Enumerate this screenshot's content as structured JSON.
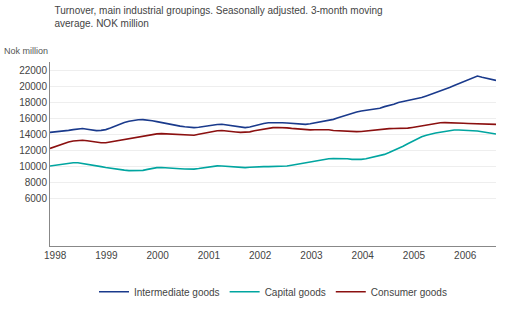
{
  "chart_data": {
    "type": "line",
    "title": "Turnover, main industrial groupings. Seasonally adjusted. 3-month moving\naverage. NOK million",
    "ylabel": "Nok million",
    "x": [
      1997.9,
      1997.990625,
      1998.08125,
      1998.171875,
      1998.2625,
      1998.353125,
      1998.44375,
      1998.534375,
      1998.625,
      1998.715625,
      1998.80625,
      1998.896875,
      1998.9875,
      1999.078125,
      1999.16875,
      1999.259375,
      1999.35,
      1999.440625,
      1999.53125,
      1999.621875,
      1999.7125,
      1999.803125,
      1999.89375,
      1999.984375,
      2000.075,
      2000.165625,
      2000.25625,
      2000.346875,
      2000.4375,
      2000.528125,
      2000.61875,
      2000.709375,
      2000.8,
      2000.890625,
      2000.98125,
      2001.071875,
      2001.1625,
      2001.253125,
      2001.34375,
      2001.434375,
      2001.525,
      2001.615625,
      2001.70625,
      2001.796875,
      2001.8875,
      2001.978125,
      2002.06875,
      2002.159375,
      2002.25,
      2002.340625,
      2002.43125,
      2002.521875,
      2002.6125,
      2002.703125,
      2002.79375,
      2002.884375,
      2002.975,
      2003.065625,
      2003.15625,
      2003.246875,
      2003.3375,
      2003.428125,
      2003.51875,
      2003.609375,
      2003.7,
      2003.790625,
      2003.88125,
      2003.971875,
      2004.0625,
      2004.153125,
      2004.24375,
      2004.334375,
      2004.425,
      2004.515625,
      2004.60625,
      2004.696875,
      2004.7875,
      2004.878125,
      2004.96875,
      2005.059375,
      2005.15,
      2005.240625,
      2005.33125,
      2005.421875,
      2005.5125,
      2005.603125,
      2005.69375,
      2005.784375,
      2005.875,
      2005.965625,
      2006.05625,
      2006.146875,
      2006.2375,
      2006.328125,
      2006.41875,
      2006.509375,
      2006.6
    ],
    "series": [
      {
        "name": "Intermediate goods",
        "color": "#1a3a8c",
        "values": [
          14200,
          14250,
          14300,
          14380,
          14450,
          14550,
          14650,
          14680,
          14600,
          14500,
          14420,
          14450,
          14550,
          14750,
          15000,
          15200,
          15450,
          15600,
          15700,
          15780,
          15800,
          15750,
          15650,
          15550,
          15420,
          15300,
          15180,
          15080,
          14980,
          14900,
          14820,
          14800,
          14850,
          14950,
          15020,
          15100,
          15180,
          15220,
          15150,
          15050,
          14950,
          14850,
          14800,
          14870,
          15050,
          15200,
          15320,
          15400,
          15430,
          15420,
          15400,
          15380,
          15320,
          15300,
          15230,
          15200,
          15280,
          15380,
          15500,
          15620,
          15720,
          15830,
          16020,
          16220,
          16420,
          16630,
          16750,
          16870,
          16950,
          17050,
          17130,
          17220,
          17420,
          17550,
          17730,
          17950,
          18080,
          18150,
          18250,
          18380,
          18550,
          18750,
          18950,
          19150,
          19380,
          19580,
          19800,
          20050,
          20280,
          20520,
          20780,
          21050,
          21250,
          21100,
          20950,
          20780,
          20700
        ]
      },
      {
        "name": "Capital goods",
        "color": "#00a5a0",
        "values": [
          10000,
          10080,
          10150,
          10230,
          10350,
          10400,
          10400,
          10320,
          10220,
          10120,
          10020,
          9920,
          9820,
          9720,
          9630,
          9550,
          9480,
          9420,
          9400,
          9400,
          9450,
          9580,
          9700,
          9800,
          9820,
          9800,
          9750,
          9720,
          9660,
          9620,
          9600,
          9610,
          9680,
          9780,
          9880,
          9980,
          10020,
          10000,
          9950,
          9920,
          9850,
          9810,
          9800,
          9850,
          9900,
          9920,
          9920,
          9920,
          9920,
          9920,
          9930,
          10000,
          10100,
          10200,
          10320,
          10430,
          10530,
          10620,
          10720,
          10820,
          10900,
          10930,
          10930,
          10920,
          10910,
          10830,
          10820,
          10830,
          10900,
          11020,
          11130,
          11250,
          11450,
          11680,
          11920,
          12200,
          12480,
          12780,
          13080,
          13380,
          13650,
          13850,
          14020,
          14120,
          14220,
          14320,
          14420,
          14500,
          14500,
          14480,
          14450,
          14430,
          14380,
          14280,
          14180,
          14080,
          14000
        ]
      },
      {
        "name": "Consumer goods",
        "color": "#8b1010",
        "values": [
          12200,
          12400,
          12620,
          12820,
          13000,
          13120,
          13200,
          13220,
          13150,
          13050,
          12950,
          12900,
          12900,
          13000,
          13120,
          13250,
          13380,
          13480,
          13570,
          13660,
          13750,
          13850,
          13950,
          14020,
          14050,
          14020,
          14000,
          13950,
          13900,
          13840,
          13800,
          13850,
          13970,
          14080,
          14200,
          14320,
          14400,
          14430,
          14400,
          14330,
          14250,
          14200,
          14200,
          14270,
          14400,
          14520,
          14640,
          14730,
          14800,
          14820,
          14820,
          14770,
          14700,
          14650,
          14580,
          14520,
          14520,
          14530,
          14540,
          14540,
          14530,
          14440,
          14400,
          14350,
          14310,
          14290,
          14300,
          14320,
          14390,
          14480,
          14550,
          14620,
          14650,
          14670,
          14680,
          14690,
          14700,
          14730,
          14820,
          14930,
          15030,
          15130,
          15230,
          15320,
          15400,
          15420,
          15420,
          15420,
          15400,
          15350,
          15320,
          15300,
          15300,
          15230,
          15200,
          15200,
          15200
        ]
      }
    ],
    "xlim": [
      1997.9,
      2006.6
    ],
    "xticks": [
      1998,
      1999,
      2000,
      2001,
      2002,
      2003,
      2004,
      2005,
      2006
    ],
    "ylim": [
      0,
      23000
    ],
    "yticks": [
      6000,
      8000,
      10000,
      12000,
      14000,
      16000,
      18000,
      20000,
      22000
    ],
    "grid": true,
    "legend": "bottom"
  }
}
